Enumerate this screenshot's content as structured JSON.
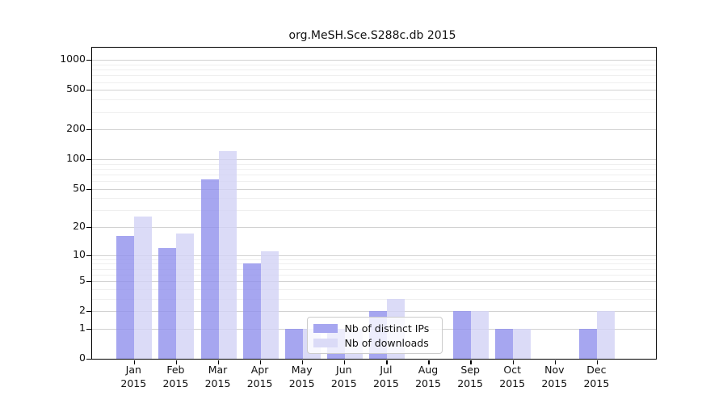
{
  "title": "org.MeSH.Sce.S288c.db 2015",
  "colors": {
    "ips_bar": "rgba(144,144,236,0.8)",
    "downloads_bar": "rgba(210,210,245,0.8)",
    "ips_swatch": "#a6a6f0",
    "downloads_swatch": "#dbdbf7",
    "grid_minor": "#efefef",
    "grid_major": "#d2d2d2",
    "axis": "#000000"
  },
  "legend": {
    "items": [
      {
        "label": "Nb of distinct IPs",
        "series": "ips"
      },
      {
        "label": "Nb of downloads",
        "series": "downloads"
      }
    ]
  },
  "y_axis": {
    "scale": "log10(1+x)",
    "tick_labels": [
      "0",
      "1",
      "2",
      "5",
      "10",
      "20",
      "50",
      "100",
      "200",
      "500",
      "1000"
    ]
  },
  "x_axis": {
    "year": "2015",
    "months": [
      "Jan",
      "Feb",
      "Mar",
      "Apr",
      "May",
      "Jun",
      "Jul",
      "Aug",
      "Sep",
      "Oct",
      "Nov",
      "Dec"
    ]
  },
  "chart_data": {
    "type": "bar",
    "title": "org.MeSH.Sce.S288c.db 2015",
    "categories": [
      "Jan 2015",
      "Feb 2015",
      "Mar 2015",
      "Apr 2015",
      "May 2015",
      "Jun 2015",
      "Jul 2015",
      "Aug 2015",
      "Sep 2015",
      "Oct 2015",
      "Nov 2015",
      "Dec 2015"
    ],
    "series": [
      {
        "name": "Nb of distinct IPs",
        "color": "#a6a6f0",
        "values": [
          16,
          12,
          62,
          8,
          1,
          1,
          2,
          0,
          2,
          1,
          0,
          1
        ]
      },
      {
        "name": "Nb of downloads",
        "color": "#dbdbf7",
        "values": [
          26,
          17,
          122,
          11,
          1,
          1,
          3,
          0,
          2,
          1,
          0,
          2
        ]
      }
    ],
    "xlabel": "",
    "ylabel": "",
    "yscale": "log1p",
    "yticks": [
      0,
      1,
      2,
      5,
      10,
      20,
      50,
      100,
      200,
      500,
      1000
    ],
    "ylim": [
      0,
      1200
    ],
    "grid": "horizontal, log minor + major",
    "legend_position": "inside lower-center-left"
  }
}
